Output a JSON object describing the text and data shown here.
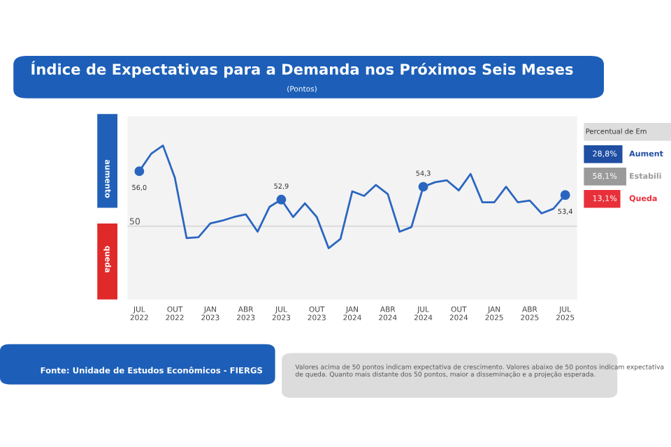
{
  "chart_data": [
    {
      "type": "line",
      "title": "Índice de Expectativas para a Demanda nos Próximos Seis Meses",
      "subtitle": "(Pontos)",
      "categories": [
        "JUL\n2022",
        null,
        null,
        "OUT\n2022",
        null,
        null,
        "JAN\n2023",
        null,
        null,
        "ABR\n2023",
        null,
        null,
        "JUL\n2023",
        null,
        null,
        "OUT\n2023",
        null,
        null,
        "JAN\n2024",
        null,
        null,
        "ABR\n2024",
        null,
        null,
        "JUL\n2024",
        null,
        null,
        "OUT\n2024",
        null,
        null,
        "JAN\n2025",
        null,
        null,
        "ABR\n2025",
        null,
        null,
        "JUL\n2025"
      ],
      "series": [
        {
          "color": "#2a66c0",
          "values": [
            56.0,
            57.9,
            58.8,
            55.3,
            48.7,
            48.8,
            50.3,
            50.6,
            51.0,
            51.3,
            49.4,
            52.1,
            52.9,
            51.0,
            52.5,
            51.0,
            47.6,
            48.6,
            53.8,
            53.3,
            54.5,
            53.5,
            49.4,
            49.9,
            54.3,
            54.8,
            55.0,
            53.9,
            55.7,
            52.6,
            52.6,
            54.3,
            52.6,
            52.8,
            51.4,
            51.9,
            53.4
          ],
          "value_labels": [
            "56,0",
            null,
            null,
            null,
            null,
            null,
            null,
            null,
            null,
            null,
            null,
            null,
            "52,9",
            null,
            null,
            null,
            null,
            null,
            null,
            null,
            null,
            null,
            null,
            null,
            "54,3",
            null,
            null,
            null,
            null,
            null,
            null,
            null,
            null,
            null,
            null,
            null,
            "53,4"
          ]
        }
      ],
      "line_style": "solid",
      "ylim": [
        42,
        62
      ],
      "tick_labels": "x",
      "grid": false,
      "legend": false,
      "ref_lines": [
        {
          "axis": "y",
          "value": 50,
          "label": "50",
          "color": "#dddddd"
        }
      ],
      "annotations": [
        "aumento",
        "queda",
        "Fonte: Unidade de Estudos Econômicos - FIERGS",
        "Valores acima de 50 pontos indicam expectativa de crescimento. Valores abaixo de 50 pontos indicam expectativa de queda. Quanto mais distante dos 50 pontos, maior a disseminação e a projeção esperada."
      ]
    },
    {
      "type": "other",
      "title": "Percentual de Em",
      "categories": [
        "Aument",
        "Estabili",
        "Queda"
      ],
      "values": [
        28.8,
        58.1,
        13.1
      ],
      "value_labels": [
        "28,8%",
        "58,1%",
        "13,1%"
      ],
      "colors": [
        "#1f4ea3",
        "#9a9a9a",
        "#e8303a"
      ]
    }
  ]
}
